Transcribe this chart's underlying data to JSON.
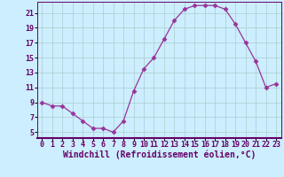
{
  "x": [
    0,
    1,
    2,
    3,
    4,
    5,
    6,
    7,
    8,
    9,
    10,
    11,
    12,
    13,
    14,
    15,
    16,
    17,
    18,
    19,
    20,
    21,
    22,
    23
  ],
  "y": [
    9,
    8.5,
    8.5,
    7.5,
    6.5,
    5.5,
    5.5,
    5.0,
    6.5,
    10.5,
    13.5,
    15.0,
    17.5,
    20.0,
    21.5,
    22.0,
    22.0,
    22.0,
    21.5,
    19.5,
    17.0,
    14.5,
    11.0,
    11.5
  ],
  "line_color": "#993399",
  "marker": "D",
  "marker_size": 2.5,
  "bg_color": "#cceeff",
  "grid_color": "#aacccc",
  "spine_color": "#660066",
  "xlabel": "Windchill (Refroidissement éolien,°C)",
  "ylabel": "",
  "xlim": [
    -0.5,
    23.5
  ],
  "ylim": [
    4.2,
    22.5
  ],
  "yticks": [
    5,
    7,
    9,
    11,
    13,
    15,
    17,
    19,
    21
  ],
  "xticks": [
    0,
    1,
    2,
    3,
    4,
    5,
    6,
    7,
    8,
    9,
    10,
    11,
    12,
    13,
    14,
    15,
    16,
    17,
    18,
    19,
    20,
    21,
    22,
    23
  ],
  "label_fontsize": 7,
  "tick_fontsize": 6
}
